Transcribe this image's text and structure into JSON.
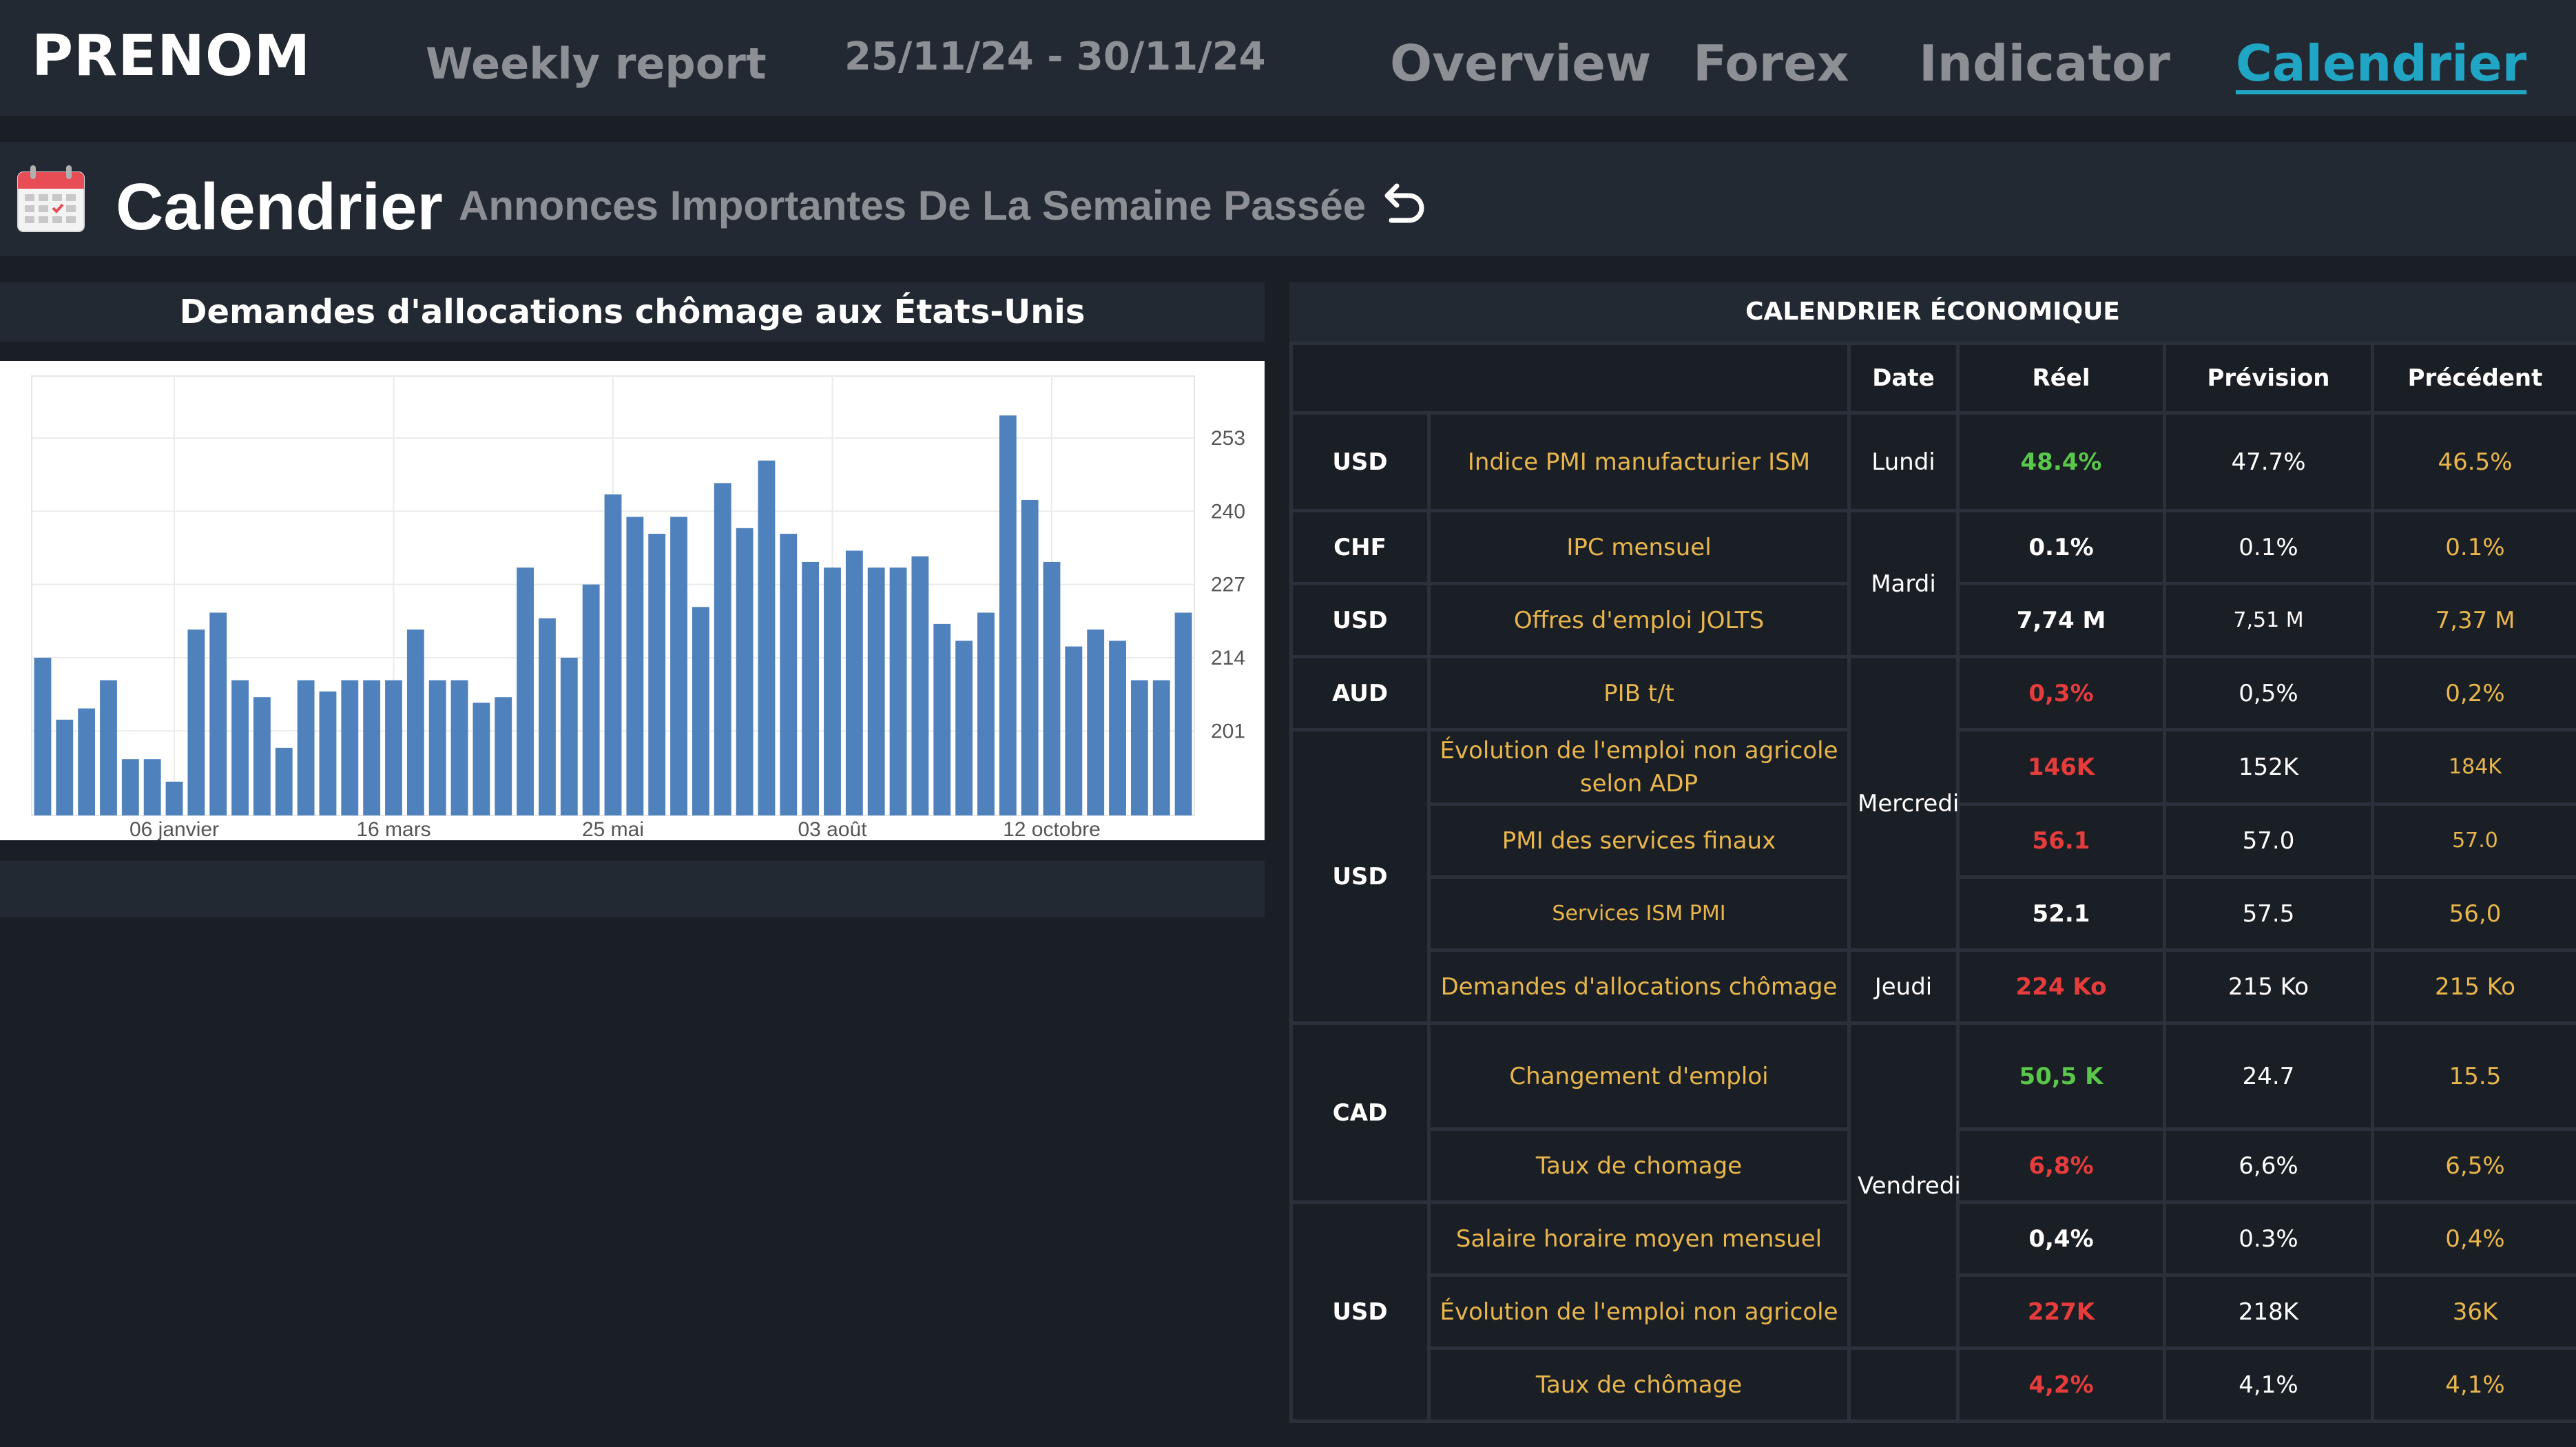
{
  "nav": {
    "brand": "PRENOM",
    "report": "Weekly report",
    "dates": "25/11/24 - 30/11/24",
    "tabs": [
      "Overview",
      "Forex",
      "Indicator",
      "Calendrier"
    ],
    "active_tab": "Calendrier"
  },
  "section": {
    "title": "Calendrier",
    "subtitle": "Annonces Importantes De La Semaine Passée",
    "icons": [
      "calendar-icon",
      "undo-icon"
    ]
  },
  "chart_panel": {
    "title": "Demandes d'allocations chômage aux États-Unis"
  },
  "chart_data": {
    "type": "bar",
    "color": "#4f81bd",
    "yticks": [
      "253",
      "240",
      "227",
      "214",
      "201"
    ],
    "ytick_values": [
      253,
      240,
      227,
      214,
      201
    ],
    "xticks": [
      "06 janvier",
      "16 mars",
      "25 mai",
      "03 août",
      "12 octobre"
    ],
    "xtick_index": [
      6,
      16,
      26,
      36,
      46
    ],
    "ylim": [
      186,
      264
    ],
    "values": [
      214,
      203,
      205,
      210,
      196,
      196,
      192,
      219,
      222,
      210,
      207,
      198,
      210,
      208,
      210,
      210,
      210,
      219,
      210,
      210,
      206,
      207,
      230,
      221,
      214,
      227,
      243,
      239,
      236,
      239,
      223,
      245,
      237,
      249,
      236,
      231,
      230,
      233,
      230,
      230,
      232,
      220,
      217,
      222,
      257,
      242,
      231,
      216,
      219,
      217,
      210,
      210,
      222
    ]
  },
  "table": {
    "title": "CALENDRIER ÉCONOMIQUE",
    "headers": [
      "",
      "",
      "Date",
      "Réel",
      "Prévision",
      "Précédent"
    ],
    "rows": [
      {
        "currency": "USD",
        "announcement": "Indice PMI manufacturier ISM",
        "day": "Lundi",
        "actual": "48.4%",
        "forecast": "47.7%",
        "previous": "46.5%"
      },
      {
        "currency": "CHF",
        "announcement": "IPC mensuel",
        "day": "Mardi",
        "actual": "0.1%",
        "forecast": "0.1%",
        "previous": "0.1%"
      },
      {
        "currency": "USD",
        "announcement": "Offres d'emploi JOLTS",
        "actual": "7,74 M",
        "forecast": "7,51 M",
        "previous": "7,37 M"
      },
      {
        "currency": "AUD",
        "announcement": "PIB t/t",
        "day": "Mercredi",
        "actual": "0,3%",
        "forecast": "0,5%",
        "previous": "0,2%"
      },
      {
        "currency": "USD",
        "announcement": "Évolution de l'emploi non agricole selon ADP",
        "actual": "146K",
        "forecast": "152K",
        "previous": "184K"
      },
      {
        "announcement": "PMI des services finaux",
        "actual": "56.1",
        "forecast": "57.0",
        "previous": "57.0"
      },
      {
        "announcement": "Services ISM PMI",
        "actual": "52.1",
        "forecast": "57.5",
        "previous": "56,0"
      },
      {
        "announcement": "Demandes d'allocations chômage",
        "day": "Jeudi",
        "actual": "224 Ko",
        "forecast": "215 Ko",
        "previous": "215 Ko"
      },
      {
        "currency": "CAD",
        "announcement": "Changement d'emploi",
        "day": "Vendredi",
        "actual": "50,5 K",
        "forecast": "24.7",
        "previous": "15.5"
      },
      {
        "announcement": "Taux de chomage",
        "actual": "6,8%",
        "forecast": "6,6%",
        "previous": "6,5%"
      },
      {
        "currency": "USD",
        "announcement": "Salaire horaire moyen mensuel",
        "actual": "0,4%",
        "forecast": "0.3%",
        "previous": "0,4%"
      },
      {
        "announcement": "Évolution de l'emploi non agricole",
        "actual": "227K",
        "forecast": "218K",
        "previous": "36K"
      },
      {
        "announcement": "Taux de chômage",
        "actual": "4,2%",
        "forecast": "4,1%",
        "previous": "4,1%"
      }
    ]
  },
  "colors": {
    "background": "#1a1e25",
    "panel": "#232932",
    "accent": "#20a6c4",
    "positive": "#59c84a",
    "negative": "#e63c3c",
    "label": "#e8b64c"
  }
}
